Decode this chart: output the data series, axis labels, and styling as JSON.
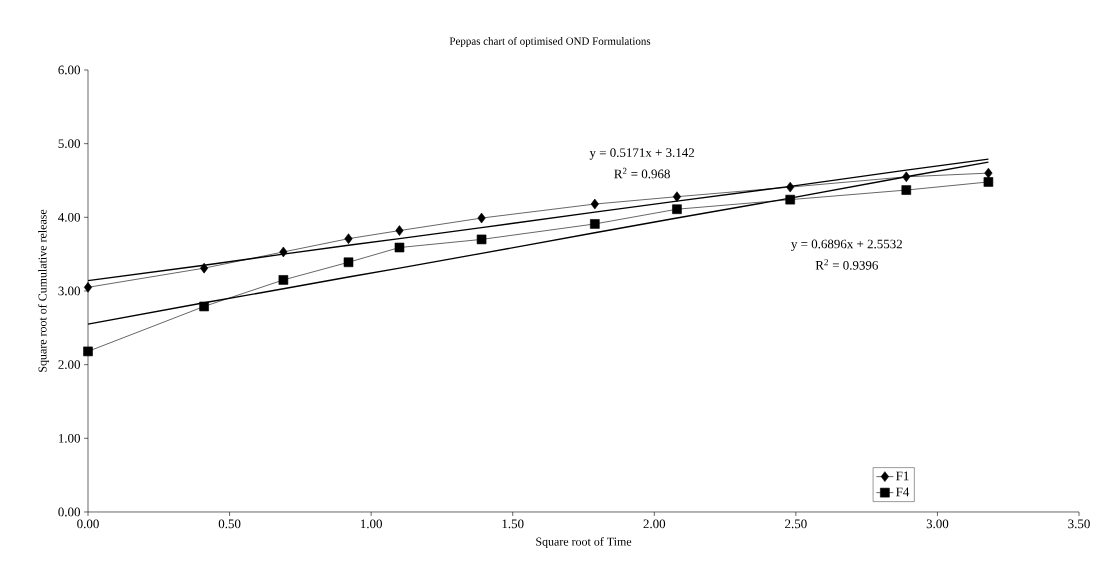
{
  "chart_data": {
    "type": "line",
    "title": "Peppas chart of optimised OND Formulations",
    "xlabel": "Square root of Time",
    "ylabel": "Square root of Cumulative release",
    "x": [
      0,
      0.41,
      0.69,
      0.92,
      1.1,
      1.39,
      1.79,
      2.08,
      2.48,
      2.89,
      3.18
    ],
    "series": [
      {
        "name": "F1",
        "color": "#000000",
        "marker": "diamond",
        "values": [
          3.05,
          3.31,
          3.53,
          3.71,
          3.82,
          3.99,
          4.18,
          4.28,
          4.41,
          4.55,
          4.6
        ]
      },
      {
        "name": "F4",
        "color": "#000000",
        "marker": "square",
        "values": [
          2.18,
          2.79,
          3.15,
          3.39,
          3.59,
          3.7,
          3.91,
          4.11,
          4.24,
          4.37,
          4.48
        ]
      },
      {
        "type": "line",
        "color": "#000000",
        "marker": "none",
        "values": [
          3.14,
          3.35,
          3.5,
          3.62,
          3.71,
          3.86,
          4.07,
          4.22,
          4.42,
          4.64,
          4.79
        ]
      },
      {
        "type": "line",
        "color": "#000000",
        "marker": "none",
        "values": [
          2.55,
          2.84,
          3.03,
          3.19,
          3.31,
          3.51,
          3.79,
          3.99,
          4.26,
          4.55,
          4.75
        ]
      }
    ],
    "annotations": [
      "y = 0.5171x + 3.142",
      "R$^{2}$ = 0.968",
      "y = 0.6896x + 2.5532",
      "R$^{2}$ = 0.9396"
    ],
    "xlim": [
      0,
      3.5
    ],
    "ylim": [
      0,
      6
    ],
    "xticks": [
      {
        "value": 0,
        "label": "0.00"
      },
      {
        "value": 0.5,
        "label": "0.50"
      },
      {
        "value": 1,
        "label": "1.00"
      },
      {
        "value": 1.5,
        "label": "1.50"
      },
      {
        "value": 2,
        "label": "2.00"
      },
      {
        "value": 2.5,
        "label": "2.50"
      },
      {
        "value": 3,
        "label": "3.00"
      },
      {
        "value": 3.5,
        "label": "3.50"
      }
    ],
    "yticks": [
      {
        "value": 0,
        "label": "0.00"
      },
      {
        "value": 1,
        "label": "1.00"
      },
      {
        "value": 2,
        "label": "2.00"
      },
      {
        "value": 3,
        "label": "3.00"
      },
      {
        "value": 4,
        "label": "4.00"
      },
      {
        "value": 5,
        "label": "5.00"
      },
      {
        "value": 6,
        "label": "6.00"
      }
    ],
    "grid": false,
    "legend": "bottom right"
  }
}
